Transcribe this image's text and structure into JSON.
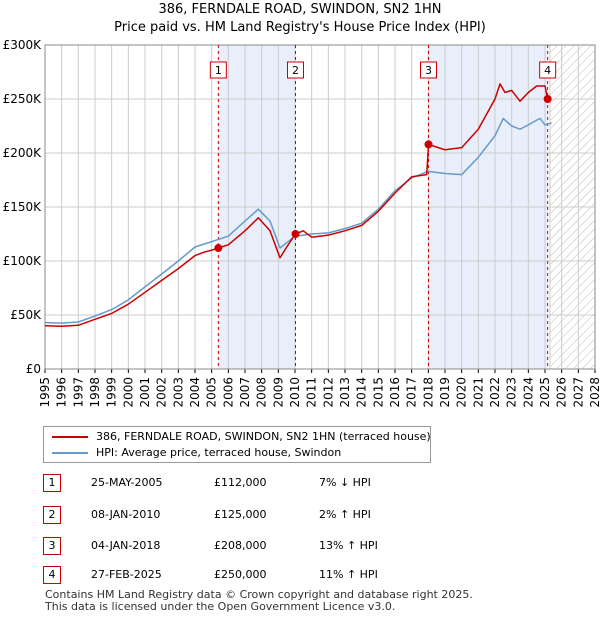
{
  "header": {
    "title": "386, FERNDALE ROAD, SWINDON, SN2 1HN",
    "subtitle": "Price paid vs. HM Land Registry's House Price Index (HPI)"
  },
  "colors": {
    "price_line": "#cc0000",
    "hpi_line": "#6699cc",
    "shade": "#e8eefa",
    "grid": "#cccccc",
    "marker_line": "#cc0000"
  },
  "chart_data": {
    "type": "line",
    "title": "386, FERNDALE ROAD, SWINDON, SN2 1HN",
    "subtitle": "Price paid vs. HM Land Registry's House Price Index (HPI)",
    "xlabel": "",
    "ylabel": "",
    "xlim": [
      1995,
      2028
    ],
    "ylim": [
      0,
      300000
    ],
    "grid": true,
    "legend_position": "bottom",
    "x_ticks": [
      "1995",
      "1996",
      "1997",
      "1998",
      "1999",
      "2000",
      "2001",
      "2002",
      "2003",
      "2004",
      "2005",
      "2006",
      "2007",
      "2008",
      "2009",
      "2010",
      "2011",
      "2012",
      "2013",
      "2014",
      "2015",
      "2016",
      "2017",
      "2018",
      "2019",
      "2020",
      "2021",
      "2022",
      "2023",
      "2024",
      "2025",
      "2026",
      "2027",
      "2028"
    ],
    "y_ticks": [
      {
        "value": 0,
        "label": "£0"
      },
      {
        "value": 50000,
        "label": "£50K"
      },
      {
        "value": 100000,
        "label": "£100K"
      },
      {
        "value": 150000,
        "label": "£150K"
      },
      {
        "value": 200000,
        "label": "£200K"
      },
      {
        "value": 250000,
        "label": "£250K"
      },
      {
        "value": 300000,
        "label": "£300K"
      }
    ],
    "shaded_spans": [
      [
        2005.4,
        2010.03
      ],
      [
        2018.01,
        2025.16
      ]
    ],
    "future_hatch_from": 2025.3,
    "series": [
      {
        "name": "386, FERNDALE ROAD, SWINDON, SN2 1HN (terraced house)",
        "color": "#cc0000",
        "x": [
          1995,
          1996,
          1997,
          1998,
          1999,
          2000,
          2001,
          2002,
          2003,
          2004,
          2004.5,
          2005,
          2005.4,
          2006,
          2007,
          2007.8,
          2008.5,
          2009.1,
          2009.5,
          2010.03,
          2010.5,
          2011,
          2012,
          2013,
          2014,
          2015,
          2016,
          2017,
          2017.9,
          2018.01,
          2018.6,
          2019,
          2020,
          2021,
          2022,
          2022.3,
          2022.6,
          2023,
          2023.5,
          2024,
          2024.5,
          2025,
          2025.16
        ],
        "values": [
          40000,
          39500,
          40500,
          46000,
          51500,
          60000,
          71000,
          82000,
          93000,
          105000,
          108000,
          110000,
          112000,
          115000,
          128000,
          140000,
          128000,
          103000,
          113000,
          125000,
          128000,
          122000,
          124000,
          128000,
          133000,
          146000,
          163000,
          178000,
          180000,
          208000,
          205000,
          203000,
          205000,
          222000,
          250000,
          264000,
          256000,
          258000,
          248000,
          256000,
          262000,
          262000,
          250000
        ]
      },
      {
        "name": "HPI: Average price, terraced house, Swindon",
        "color": "#6699cc",
        "x": [
          1995,
          1996,
          1997,
          1998,
          1999,
          2000,
          2001,
          2002,
          2003,
          2004,
          2005,
          2006,
          2007,
          2007.8,
          2008.5,
          2009.1,
          2010,
          2011,
          2012,
          2013,
          2014,
          2015,
          2016,
          2017,
          2018,
          2019,
          2020,
          2021,
          2022,
          2022.5,
          2023,
          2023.5,
          2024,
          2024.7,
          2025,
          2025.4
        ],
        "values": [
          43000,
          42500,
          43500,
          49000,
          55000,
          64000,
          76000,
          88000,
          100000,
          113000,
          118000,
          123000,
          137000,
          148000,
          137000,
          112000,
          123000,
          125000,
          126000,
          130000,
          135000,
          148000,
          165000,
          177000,
          183000,
          181000,
          180000,
          196000,
          216000,
          232000,
          225000,
          222000,
          226000,
          232000,
          226000,
          228000
        ]
      }
    ],
    "transactions": [
      {
        "label": "1",
        "x": 2005.4,
        "value": 112000
      },
      {
        "label": "2",
        "x": 2010.03,
        "value": 125000
      },
      {
        "label": "3",
        "x": 2018.01,
        "value": 208000
      },
      {
        "label": "4",
        "x": 2025.16,
        "value": 250000
      }
    ]
  },
  "legend": {
    "items": [
      {
        "label": "386, FERNDALE ROAD, SWINDON, SN2 1HN (terraced house)",
        "color": "#cc0000"
      },
      {
        "label": "HPI: Average price, terraced house, Swindon",
        "color": "#6699cc"
      }
    ]
  },
  "table": {
    "rows": [
      {
        "num": "1",
        "date": "25-MAY-2005",
        "price": "£112,000",
        "hpi": "7% ↓ HPI"
      },
      {
        "num": "2",
        "date": "08-JAN-2010",
        "price": "£125,000",
        "hpi": "2% ↑ HPI"
      },
      {
        "num": "3",
        "date": "04-JAN-2018",
        "price": "£208,000",
        "hpi": "13% ↑ HPI"
      },
      {
        "num": "4",
        "date": "27-FEB-2025",
        "price": "£250,000",
        "hpi": "11% ↑ HPI"
      }
    ]
  },
  "footer": {
    "line1": "Contains HM Land Registry data © Crown copyright and database right 2025.",
    "line2": "This data is licensed under the Open Government Licence v3.0."
  }
}
